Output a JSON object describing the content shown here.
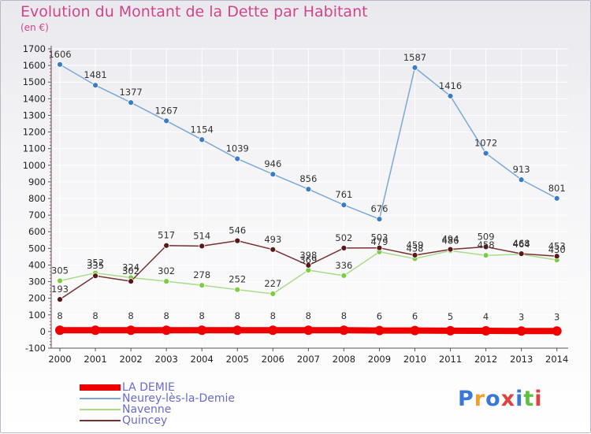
{
  "title": "Evolution du Montant de la Dette par Habitant",
  "subtitle": "(en €)",
  "logo": "Proxiti",
  "colors": {
    "title": "#d0458a",
    "axis": "#555555",
    "grid": "#ffffff",
    "legend_text": "#6a6ad0",
    "logo": [
      "#3a78d8",
      "#f0a030",
      "#3a78d8",
      "#e04040",
      "#3a78d8",
      "#60c040",
      "#e04040"
    ]
  },
  "chart_data": {
    "type": "line",
    "categories": [
      "2000",
      "2001",
      "2002",
      "2003",
      "2004",
      "2005",
      "2006",
      "2007",
      "2008",
      "2009",
      "2010",
      "2011",
      "2012",
      "2013",
      "2014"
    ],
    "y_ticks": [
      -100,
      0,
      100,
      200,
      300,
      400,
      500,
      600,
      700,
      800,
      900,
      1000,
      1100,
      1200,
      1300,
      1400,
      1500,
      1600,
      1700
    ],
    "ylim": [
      -100,
      1700
    ],
    "grid": true,
    "legend_position": "bottom-left",
    "series": [
      {
        "name": "LA DEMIE",
        "color": "#ee0000",
        "marker": "#ee0000",
        "thick": true,
        "values": [
          8,
          8,
          8,
          8,
          8,
          8,
          8,
          8,
          8,
          6,
          6,
          5,
          4,
          3,
          3
        ]
      },
      {
        "name": "Neurey-lès-la-Demie",
        "color": "#7aa8d8",
        "marker": "#3a7cc8",
        "thick": false,
        "values": [
          1606,
          1481,
          1377,
          1267,
          1154,
          1039,
          946,
          856,
          761,
          676,
          1587,
          1416,
          1072,
          913,
          801
        ]
      },
      {
        "name": "Navenne",
        "color": "#a8dc88",
        "marker": "#7ccc44",
        "thick": false,
        "values": [
          305,
          352,
          324,
          302,
          278,
          252,
          227,
          369,
          336,
          479,
          438,
          486,
          458,
          464,
          430
        ]
      },
      {
        "name": "Quincey",
        "color": "#7a3030",
        "marker": "#5a1818",
        "thick": false,
        "values": [
          193,
          335,
          302,
          517,
          514,
          546,
          493,
          398,
          502,
          503,
          459,
          494,
          509,
          468,
          453
        ]
      }
    ]
  }
}
